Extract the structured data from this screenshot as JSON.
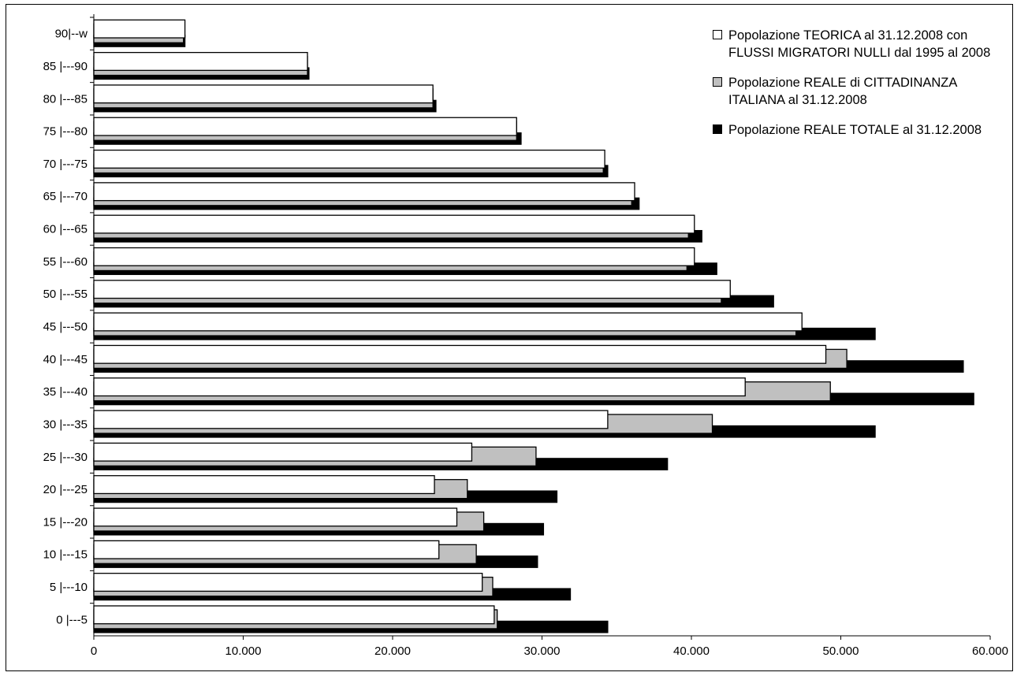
{
  "chart_data": {
    "type": "bar",
    "orientation": "horizontal",
    "categories": [
      "90|--w",
      "85 |---90",
      "80 |---85",
      "75 |---80",
      "70 |---75",
      "65 |---70",
      "60 |---65",
      "55 |---60",
      "50 |---55",
      "45 |---50",
      "40 |---45",
      "35 |---40",
      "30 |---35",
      "25 |---30",
      "20 |---25",
      "15 |---20",
      "10 |---15",
      "5 |---10",
      "0 |---5"
    ],
    "series": [
      {
        "name": "Popolazione REALE TOTALE al 31.12.2008",
        "color": "#000000",
        "values": [
          6100,
          14400,
          22900,
          28600,
          34400,
          36500,
          40700,
          41700,
          45500,
          52300,
          58200,
          58900,
          52300,
          38400,
          31000,
          30100,
          29700,
          31900,
          34400
        ]
      },
      {
        "name": "Popolazione REALE di CITTADINANZA ITALIANA al 31.12.2008",
        "color": "#c0c0c0",
        "values": [
          6000,
          14300,
          22700,
          28300,
          34100,
          36000,
          39800,
          39700,
          42000,
          47000,
          50400,
          49300,
          41400,
          29600,
          25000,
          26100,
          25600,
          26700,
          27000
        ]
      },
      {
        "name": "Popolazione TEORICA al 31.12.2008 con FLUSSI MIGRATORI NULLI dal 1995 al 2008",
        "color": "#ffffff",
        "values": [
          6100,
          14300,
          22700,
          28300,
          34200,
          36200,
          40200,
          40200,
          42600,
          47400,
          49000,
          43600,
          34400,
          25300,
          22800,
          24300,
          23100,
          26000,
          26800
        ]
      }
    ],
    "xlim": [
      0,
      60000
    ],
    "x_ticks": [
      0,
      10000,
      20000,
      30000,
      40000,
      50000,
      60000
    ],
    "x_tick_labels": [
      "0",
      "10.000",
      "20.000",
      "30.000",
      "40.000",
      "50.000",
      "60.000"
    ],
    "legend_position": "top-right",
    "grid": false
  }
}
